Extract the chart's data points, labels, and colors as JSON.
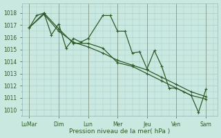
{
  "xlabel": "Pression niveau de la mer( hPa )",
  "background_color": "#c8e8e0",
  "grid_color": "#a8cccc",
  "line_color": "#2d5a27",
  "ylim": [
    1009.5,
    1018.8
  ],
  "yticks": [
    1010,
    1011,
    1012,
    1013,
    1014,
    1015,
    1016,
    1017,
    1018
  ],
  "xtick_labels": [
    "LuMar",
    "Dim",
    "Lun",
    "Mer",
    "Jeu",
    "Ven",
    "Sam"
  ],
  "xtick_positions": [
    0,
    2,
    4,
    6,
    8,
    10,
    12
  ],
  "line1_x": [
    0,
    0.5,
    1.0,
    1.5,
    2.0,
    2.5,
    3.0,
    3.5,
    4.0,
    5.0,
    5.5,
    6.0,
    6.5,
    7.0,
    7.5,
    8.0,
    8.5,
    9.0,
    9.5,
    10.0,
    10.5,
    11.0,
    11.5,
    12.0
  ],
  "line1_y": [
    1016.8,
    1017.8,
    1018.0,
    1016.2,
    1017.1,
    1015.1,
    1015.9,
    1015.6,
    1015.9,
    1017.8,
    1017.8,
    1016.5,
    1016.5,
    1014.7,
    1014.8,
    1013.4,
    1014.9,
    1013.6,
    1011.8,
    1011.8,
    1011.5,
    1011.2,
    1009.8,
    1011.7
  ],
  "line2_x": [
    0,
    1.0,
    2.0,
    3.0,
    4.0,
    5.0,
    6.0,
    7.0,
    8.0,
    9.0,
    10.0,
    11.0,
    12.0
  ],
  "line2_y": [
    1016.8,
    1017.9,
    1016.5,
    1015.6,
    1015.2,
    1014.7,
    1014.1,
    1013.7,
    1013.3,
    1012.7,
    1012.1,
    1011.5,
    1011.1
  ],
  "line3_x": [
    0,
    1.0,
    2.0,
    3.0,
    4.0,
    5.0,
    6.0,
    7.0,
    8.0,
    9.0,
    10.0,
    11.0,
    12.0
  ],
  "line3_y": [
    1016.8,
    1018.0,
    1016.7,
    1015.5,
    1015.5,
    1015.1,
    1013.9,
    1013.6,
    1013.0,
    1012.4,
    1011.8,
    1011.2,
    1010.9
  ]
}
